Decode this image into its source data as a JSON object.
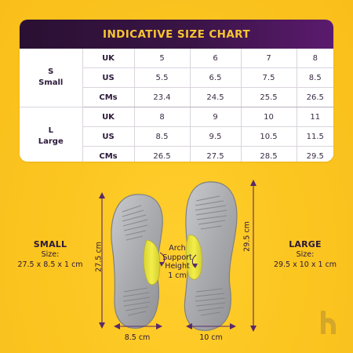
{
  "chart": {
    "title": "INDICATIVE SIZE CHART",
    "groups": [
      {
        "line1": "S",
        "line2": "Small",
        "rows": [
          {
            "unit": "UK",
            "values": [
              "5",
              "6",
              "7",
              "8"
            ]
          },
          {
            "unit": "US",
            "values": [
              "5.5",
              "6.5",
              "7.5",
              "8.5"
            ]
          },
          {
            "unit": "CMs",
            "values": [
              "23.4",
              "24.5",
              "25.5",
              "26.5"
            ]
          }
        ]
      },
      {
        "line1": "L",
        "line2": "Large",
        "rows": [
          {
            "unit": "UK",
            "values": [
              "8",
              "9",
              "10",
              "11"
            ]
          },
          {
            "unit": "US",
            "values": [
              "8.5",
              "9.5",
              "10.5",
              "11.5"
            ]
          },
          {
            "unit": "CMs",
            "values": [
              "26.5",
              "27.5",
              "28.5",
              "29.5"
            ]
          }
        ]
      }
    ]
  },
  "small": {
    "title": "SMALL",
    "size_label": "Size:",
    "size_value": "27.5 x 8.5 x 1 cm",
    "length": "27.5 cm",
    "width": "8.5 cm"
  },
  "large": {
    "title": "LARGE",
    "size_label": "Size:",
    "size_value": "29.5 x 10 x 1 cm",
    "length": "29.5 cm",
    "width": "10 cm"
  },
  "arch": {
    "line1": "Arch",
    "line2": "Support",
    "line3": "Height",
    "line4": "1 cm"
  },
  "colors": {
    "background": "#fcc722",
    "header": "#3a1446",
    "title": "#f7c531",
    "insole": "#a8a9ad",
    "arch_pad": "#e8e23a",
    "dimension": "#5a2a6a",
    "logo": "#d4a62a"
  },
  "logo_icon": "brand-logo-icon"
}
